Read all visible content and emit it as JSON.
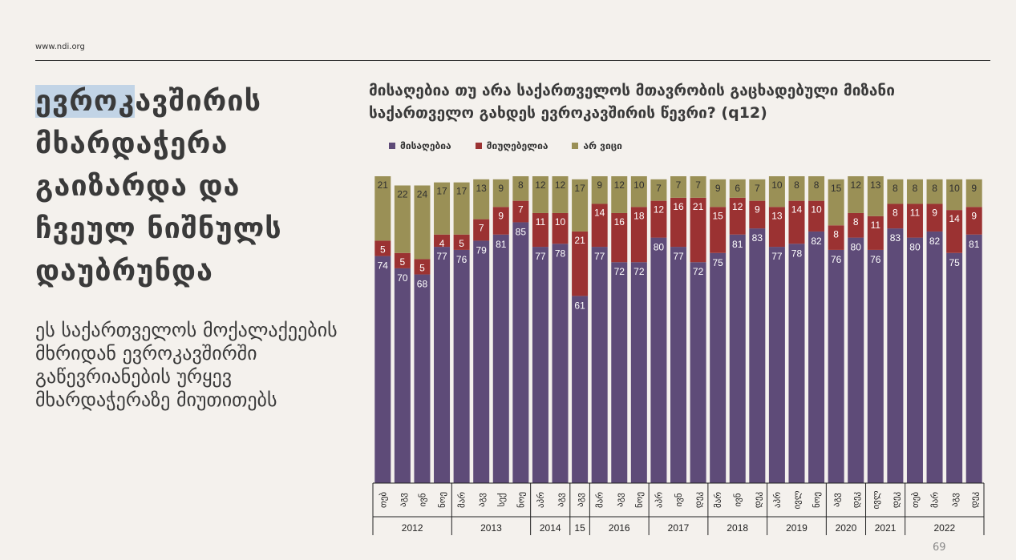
{
  "site_url": "www.ndi.org",
  "left_title": {
    "highlight": "ევროკ",
    "rest": "ავშირის მხარდაჭერა გაიზარდა და ჩვეულ ნიშნულს დაუბრუნდა"
  },
  "left_body": "ეს საქართველოს მოქალაქეების მხრიდან ევროკავშირში გაწევრიანების ურყევ მხარდაჭერაზე მიუთითებს",
  "page_number": "69",
  "colors": {
    "accept": "#5e4b78",
    "reject": "#9b3232",
    "dont_know": "#9a9056",
    "background": "#f4f1ed"
  },
  "chart_data": {
    "type": "bar",
    "stacked": true,
    "title": "მისაღებია თუ არა საქართველოს მთავრობის გაცხადებული მიზანი საქართველო გახდეს ევროკავშირის წევრი? (q12)",
    "legend_position": "top-left",
    "categories": [
      "თებ",
      "აგვ",
      "ივნ",
      "ნოე",
      "მარ",
      "აგვ",
      "სექ",
      "ნოე",
      "აპრ",
      "აგვ",
      "აგვ",
      "მარ",
      "აგვ",
      "ნოე",
      "აპრ",
      "ივნ",
      "დეკ",
      "მარ",
      "ივნ",
      "დეკ",
      "აპრ",
      "ივლ",
      "ნოე",
      "აგვ",
      "დეკ",
      "ივლ",
      "დეკ",
      "თებ",
      "მარ",
      "აგვ",
      "დეკ"
    ],
    "year_groups": [
      {
        "label": "2012",
        "count": 4
      },
      {
        "label": "2013",
        "count": 4
      },
      {
        "label": "2014",
        "count": 2
      },
      {
        "label": "15",
        "count": 1
      },
      {
        "label": "2016",
        "count": 3
      },
      {
        "label": "2017",
        "count": 3
      },
      {
        "label": "2018",
        "count": 3
      },
      {
        "label": "2019",
        "count": 3
      },
      {
        "label": "2020",
        "count": 2
      },
      {
        "label": "2021",
        "count": 2
      },
      {
        "label": "2022",
        "count": 4
      }
    ],
    "series": [
      {
        "name": "მისაღებია",
        "color": "#5e4b78",
        "values": [
          74,
          70,
          68,
          77,
          76,
          79,
          81,
          85,
          77,
          78,
          61,
          77,
          72,
          72,
          80,
          77,
          72,
          75,
          81,
          83,
          77,
          78,
          82,
          76,
          80,
          76,
          83,
          80,
          82,
          75,
          81
        ]
      },
      {
        "name": "მიუღებელია",
        "color": "#9b3232",
        "values": [
          5,
          5,
          5,
          4,
          5,
          7,
          9,
          7,
          11,
          10,
          21,
          14,
          16,
          18,
          12,
          16,
          21,
          15,
          12,
          9,
          13,
          14,
          10,
          8,
          8,
          11,
          8,
          11,
          9,
          14,
          9
        ]
      },
      {
        "name": "არ ვიცი",
        "color": "#9a9056",
        "values": [
          21,
          22,
          24,
          17,
          17,
          13,
          9,
          8,
          12,
          12,
          17,
          9,
          12,
          10,
          7,
          7,
          7,
          9,
          6,
          7,
          10,
          8,
          8,
          15,
          12,
          13,
          8,
          8,
          8,
          10,
          9
        ]
      }
    ],
    "ylim": [
      0,
      100
    ]
  }
}
